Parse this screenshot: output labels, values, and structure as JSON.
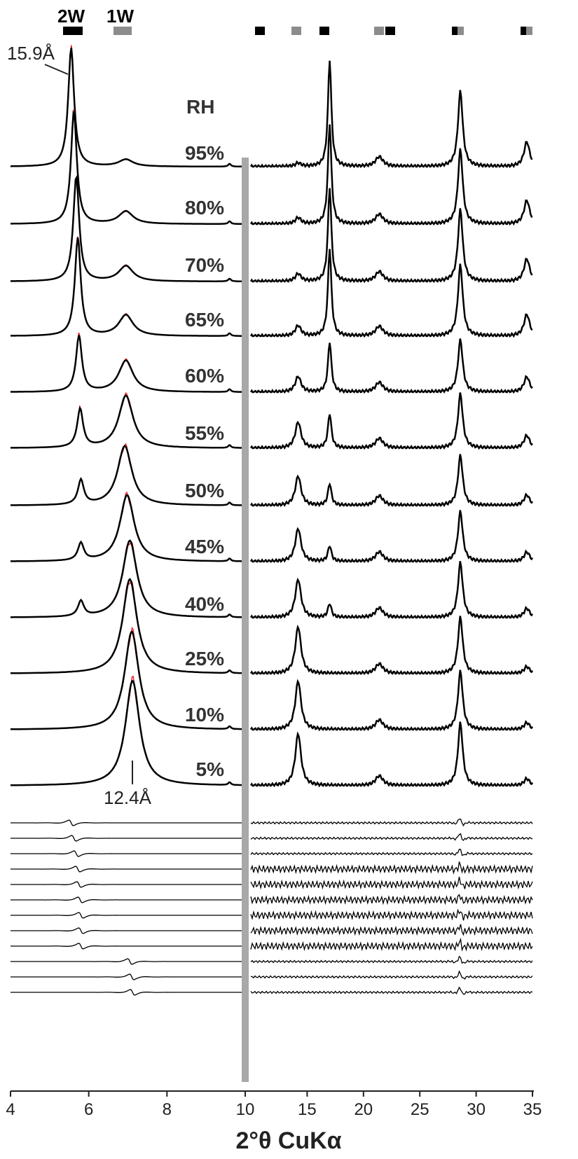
{
  "chart_data": {
    "type": "line",
    "xlabel": "2°θ CuKα",
    "axis_label": "RH",
    "x_ticks_left": [
      "4",
      "6",
      "8",
      "10"
    ],
    "x_ticks_right": [
      "15",
      "20",
      "25",
      "30",
      "35"
    ],
    "x_range_left": [
      4,
      10
    ],
    "x_range_right": [
      10,
      35
    ],
    "phases": [
      {
        "name": "2W",
        "color": "#000000"
      },
      {
        "name": "1W",
        "color": "#8c8c8c"
      }
    ],
    "annotations": [
      {
        "text": "15.9Å",
        "x": 5.55
      },
      {
        "text": "12.4Å",
        "x": 7.1
      }
    ],
    "colors": {
      "observed": "#000000",
      "calculated": "#e8272a",
      "divider": "#a8a8a8"
    },
    "series": [
      {
        "name": "95%",
        "peak1": 5.55,
        "h1": 170,
        "peak2": 6.95,
        "h2": 10
      },
      {
        "name": "80%",
        "peak1": 5.62,
        "h1": 160,
        "peak2": 6.95,
        "h2": 18
      },
      {
        "name": "70%",
        "peak1": 5.68,
        "h1": 150,
        "peak2": 6.95,
        "h2": 22
      },
      {
        "name": "65%",
        "peak1": 5.72,
        "h1": 140,
        "peak2": 6.95,
        "h2": 30
      },
      {
        "name": "60%",
        "peak1": 5.75,
        "h1": 80,
        "peak2": 6.95,
        "h2": 45
      },
      {
        "name": "55%",
        "peak1": 5.78,
        "h1": 55,
        "peak2": 6.95,
        "h2": 75
      },
      {
        "name": "50%",
        "peak1": 5.8,
        "h1": 35,
        "peak2": 6.92,
        "h2": 85
      },
      {
        "name": "45%",
        "peak1": 5.8,
        "h1": 25,
        "peak2": 6.98,
        "h2": 95
      },
      {
        "name": "40%",
        "peak1": 5.8,
        "h1": 22,
        "peak2": 7.05,
        "h2": 110
      },
      {
        "name": "25%",
        "peak1": 5.8,
        "h1": 0,
        "peak2": 7.05,
        "h2": 135
      },
      {
        "name": "10%",
        "peak1": 5.8,
        "h1": 0,
        "peak2": 7.1,
        "h2": 140
      },
      {
        "name": "5%",
        "peak1": 5.8,
        "h1": 0,
        "peak2": 7.12,
        "h2": 150
      }
    ]
  }
}
